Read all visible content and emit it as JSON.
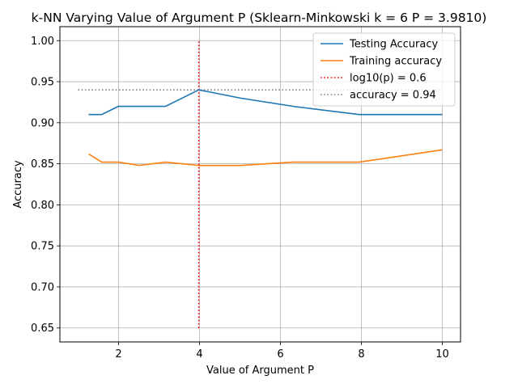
{
  "chart_data": {
    "type": "line",
    "title": "k-NN Varying Value of Argument P (Sklearn-Minkowski k = 6 P = 3.9810)",
    "xlabel": "Value of Argument P",
    "ylabel": "Accuracy",
    "xlim": [
      0.55,
      10.45
    ],
    "ylim": [
      0.633,
      1.017
    ],
    "xticks": [
      2,
      4,
      6,
      8,
      10
    ],
    "xtick_labels": [
      "2",
      "4",
      "6",
      "8",
      "10"
    ],
    "yticks": [
      0.65,
      0.7,
      0.75,
      0.8,
      0.85,
      0.9,
      0.95,
      1.0
    ],
    "ytick_labels": [
      "0.65",
      "0.70",
      "0.75",
      "0.80",
      "0.85",
      "0.90",
      "0.95",
      "1.00"
    ],
    "grid": true,
    "legend_position": "top-right",
    "series": [
      {
        "name": "Testing Accuracy",
        "color": "#1f77b4",
        "style": "solid",
        "x": [
          1.259,
          1.585,
          1.995,
          2.512,
          3.162,
          3.981,
          5.012,
          6.31,
          7.943,
          10.0
        ],
        "y": [
          0.91,
          0.91,
          0.92,
          0.92,
          0.92,
          0.94,
          0.93,
          0.92,
          0.91,
          0.91
        ]
      },
      {
        "name": "Training accuracy",
        "color": "#ff7f0e",
        "style": "solid",
        "x": [
          1.259,
          1.585,
          1.995,
          2.512,
          3.162,
          3.981,
          5.012,
          6.31,
          7.943,
          10.0
        ],
        "y": [
          0.862,
          0.852,
          0.852,
          0.848,
          0.852,
          0.848,
          0.848,
          0.852,
          0.852,
          0.867
        ]
      },
      {
        "name": "log10(p) = 0.6",
        "color": "#ff0000",
        "style": "dotted",
        "x": [
          3.981,
          3.981
        ],
        "y": [
          0.65,
          1.0
        ]
      },
      {
        "name": "accuracy = 0.94",
        "color": "#808080",
        "style": "dotted",
        "x": [
          1.0,
          10.0
        ],
        "y": [
          0.94,
          0.94
        ]
      }
    ]
  }
}
